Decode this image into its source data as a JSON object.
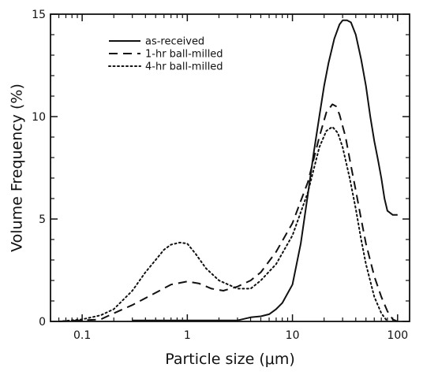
{
  "chart_data": {
    "type": "line",
    "xlabel": "Particle size (μm)",
    "ylabel": "Volume Frequency (%)",
    "x_scale": "log",
    "xlim": [
      0.05,
      130
    ],
    "ylim": [
      0,
      15
    ],
    "x_ticks": [
      {
        "value": 0.1,
        "label": "0.1"
      },
      {
        "value": 1,
        "label": "1"
      },
      {
        "value": 10,
        "label": "10"
      },
      {
        "value": 100,
        "label": "100"
      }
    ],
    "y_ticks": [
      {
        "value": 0,
        "label": "0"
      },
      {
        "value": 5,
        "label": "5"
      },
      {
        "value": 10,
        "label": "10"
      },
      {
        "value": 15,
        "label": "15"
      }
    ],
    "legend_position": "top-left",
    "series": [
      {
        "name": "as-received",
        "style": "solid",
        "x": [
          0.3,
          1.0,
          3.0,
          4.0,
          5.0,
          6.0,
          7.0,
          8.0,
          10.0,
          12.0,
          14.0,
          16.0,
          18.0,
          20.0,
          22.0,
          25.0,
          28.0,
          30.0,
          33.0,
          36.0,
          40.0,
          45.0,
          50.0,
          55.0,
          60.0,
          65.0,
          70.0,
          75.0,
          80.0,
          90.0,
          100.0
        ],
        "y": [
          0.05,
          0.05,
          0.05,
          0.2,
          0.25,
          0.35,
          0.6,
          0.9,
          1.8,
          3.8,
          6.2,
          8.3,
          10.0,
          11.5,
          12.6,
          13.8,
          14.5,
          14.7,
          14.7,
          14.6,
          14.0,
          12.8,
          11.5,
          10.0,
          8.8,
          7.9,
          7.0,
          6.0,
          5.4,
          5.2,
          5.2
        ]
      },
      {
        "name": "1-hr ball-milled",
        "style": "dashed",
        "x": [
          0.06,
          0.15,
          0.2,
          0.3,
          0.5,
          0.7,
          1.0,
          1.3,
          1.7,
          2.2,
          3.0,
          4.0,
          5.0,
          7.0,
          10.0,
          14.0,
          18.0,
          21.0,
          24.0,
          26.0,
          28.0,
          32.0,
          36.0,
          40.0,
          45.0,
          50.0,
          60.0,
          70.0,
          80.0,
          90.0,
          100.0
        ],
        "y": [
          0.0,
          0.1,
          0.4,
          0.8,
          1.4,
          1.8,
          1.95,
          1.85,
          1.6,
          1.5,
          1.7,
          2.0,
          2.4,
          3.4,
          4.8,
          6.8,
          9.0,
          10.2,
          10.6,
          10.5,
          10.1,
          9.0,
          7.6,
          6.4,
          5.0,
          3.8,
          2.2,
          1.2,
          0.5,
          0.1,
          0.0
        ]
      },
      {
        "name": "4-hr ball-milled",
        "style": "dotted",
        "x": [
          0.06,
          0.1,
          0.15,
          0.2,
          0.3,
          0.4,
          0.5,
          0.6,
          0.7,
          0.85,
          1.0,
          1.2,
          1.5,
          2.0,
          3.0,
          4.0,
          5.0,
          7.0,
          10.0,
          14.0,
          18.0,
          21.0,
          24.0,
          27.0,
          30.0,
          35.0,
          40.0,
          45.0,
          50.0,
          60.0,
          70.0,
          80.0
        ],
        "y": [
          0.0,
          0.1,
          0.3,
          0.6,
          1.5,
          2.4,
          3.0,
          3.5,
          3.75,
          3.85,
          3.8,
          3.3,
          2.6,
          2.0,
          1.6,
          1.6,
          2.0,
          2.8,
          4.2,
          6.3,
          8.5,
          9.3,
          9.5,
          9.2,
          8.5,
          7.0,
          5.5,
          4.0,
          2.8,
          1.2,
          0.4,
          0.0
        ]
      }
    ]
  }
}
